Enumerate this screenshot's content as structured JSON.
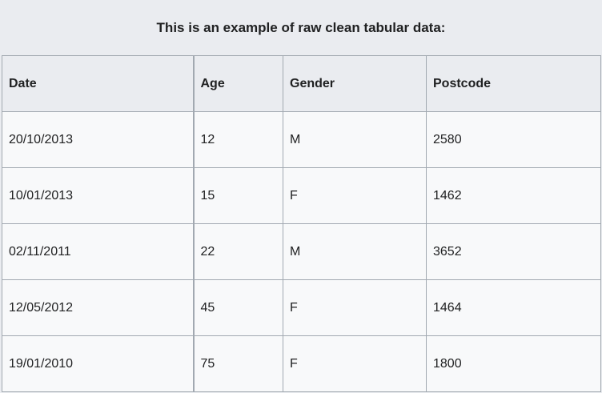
{
  "caption": "This is an example of raw clean tabular data:",
  "table": {
    "headers": [
      "Date",
      "Age",
      "Gender",
      "Postcode"
    ],
    "rows": [
      [
        "20/10/2013",
        "12",
        "M",
        "2580"
      ],
      [
        "10/01/2013",
        "15",
        "F",
        "1462"
      ],
      [
        "02/11/2011",
        "22",
        "M",
        "3652"
      ],
      [
        "12/05/2012",
        "45",
        "F",
        "1464"
      ],
      [
        "19/01/2010",
        "75",
        "F",
        "1800"
      ]
    ]
  },
  "colors": {
    "header_bg": "#eaecf0",
    "cell_bg": "#f8f9fa",
    "border": "#a2a9b1",
    "text": "#202122"
  }
}
